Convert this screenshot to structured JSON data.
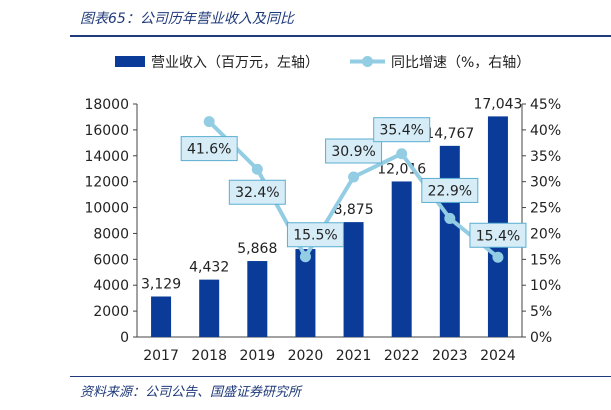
{
  "figure": {
    "title": "图表65：公司历年营业收入及同比",
    "source": "资料来源：公司公告、国盛证券研究所"
  },
  "colors": {
    "bar": "#0a3b99",
    "line": "#92cde3",
    "label_box": "#d6ecf7",
    "label_border": "#5aaed1",
    "rule": "#1f3a7a"
  },
  "chart_data": {
    "type": "bar",
    "categories": [
      "2017",
      "2018",
      "2019",
      "2020",
      "2021",
      "2022",
      "2023",
      "2024"
    ],
    "series": [
      {
        "name": "营业收入（百万元，左轴）",
        "type": "bar",
        "axis": "left",
        "values": [
          3129,
          4432,
          5868,
          6796,
          8875,
          12016,
          14767,
          17043
        ],
        "labels": [
          "3,129",
          "4,432",
          "5,868",
          "",
          "8,875",
          "12,016",
          "14,767",
          "17,043"
        ]
      },
      {
        "name": "同比增速（%，右轴）",
        "type": "line",
        "axis": "right",
        "x": [
          "2018",
          "2019",
          "2020",
          "2021",
          "2022",
          "2023",
          "2024"
        ],
        "values": [
          41.6,
          32.4,
          15.5,
          30.9,
          35.4,
          22.9,
          15.4
        ],
        "labels": [
          "41.6%",
          "32.4%",
          "15.5%",
          "30.9%",
          "35.4%",
          "22.9%",
          "15.4%"
        ]
      }
    ],
    "y_left": {
      "ylim": [
        0,
        18000
      ],
      "ticks": [
        "0",
        "2000",
        "4000",
        "6000",
        "8000",
        "10000",
        "12000",
        "14000",
        "16000",
        "18000"
      ]
    },
    "y_right": {
      "ylim": [
        0,
        45
      ],
      "ticks": [
        "0%",
        "5%",
        "10%",
        "15%",
        "20%",
        "25%",
        "30%",
        "35%",
        "40%",
        "45%"
      ]
    },
    "legend_position": "top",
    "grid": false
  }
}
